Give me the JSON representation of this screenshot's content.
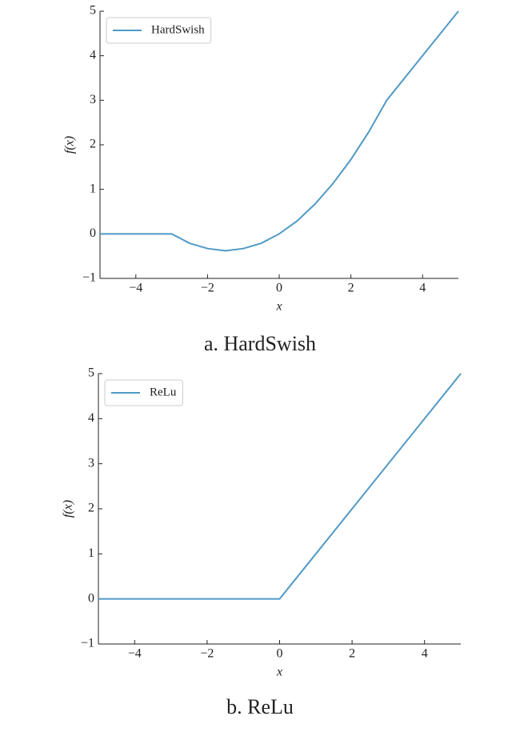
{
  "chart_data": [
    {
      "type": "line",
      "caption": "a. HardSwish",
      "xlabel": "x",
      "ylabel": "f(x)",
      "x": [
        -5,
        -4,
        -3,
        -2.5,
        -2,
        -1.5,
        -1,
        -0.5,
        0,
        0.5,
        1,
        1.5,
        2,
        2.5,
        3,
        4,
        5
      ],
      "series": [
        {
          "name": "HardSwish",
          "color": "#4f9ac6",
          "values": [
            0,
            0,
            0,
            -0.21,
            -0.33,
            -0.38,
            -0.33,
            -0.21,
            0,
            0.29,
            0.67,
            1.13,
            1.67,
            2.29,
            3,
            4,
            5
          ]
        }
      ],
      "xlim": [
        -5,
        5
      ],
      "ylim": [
        -1,
        5
      ],
      "xticks": [
        {
          "value": -4,
          "label": "−4"
        },
        {
          "value": -2,
          "label": "−2"
        },
        0,
        2,
        4
      ],
      "yticks": [
        {
          "value": -1,
          "label": "−1"
        },
        0,
        1,
        2,
        3,
        4,
        5
      ],
      "legend": "upper left"
    },
    {
      "type": "line",
      "caption": "b. ReLu",
      "xlabel": "x",
      "ylabel": "f(x)",
      "x": [
        -5,
        0,
        5
      ],
      "series": [
        {
          "name": "ReLu",
          "color": "#4f9ac6",
          "values": [
            0,
            0,
            5
          ]
        }
      ],
      "xlim": [
        -5,
        5
      ],
      "ylim": [
        -1,
        5
      ],
      "xticks": [
        {
          "value": -4,
          "label": "−4"
        },
        {
          "value": -2,
          "label": "−2"
        },
        0,
        2,
        4
      ],
      "yticks": [
        {
          "value": -1,
          "label": "−1"
        },
        0,
        1,
        2,
        3,
        4,
        5
      ],
      "legend": "upper left"
    }
  ]
}
